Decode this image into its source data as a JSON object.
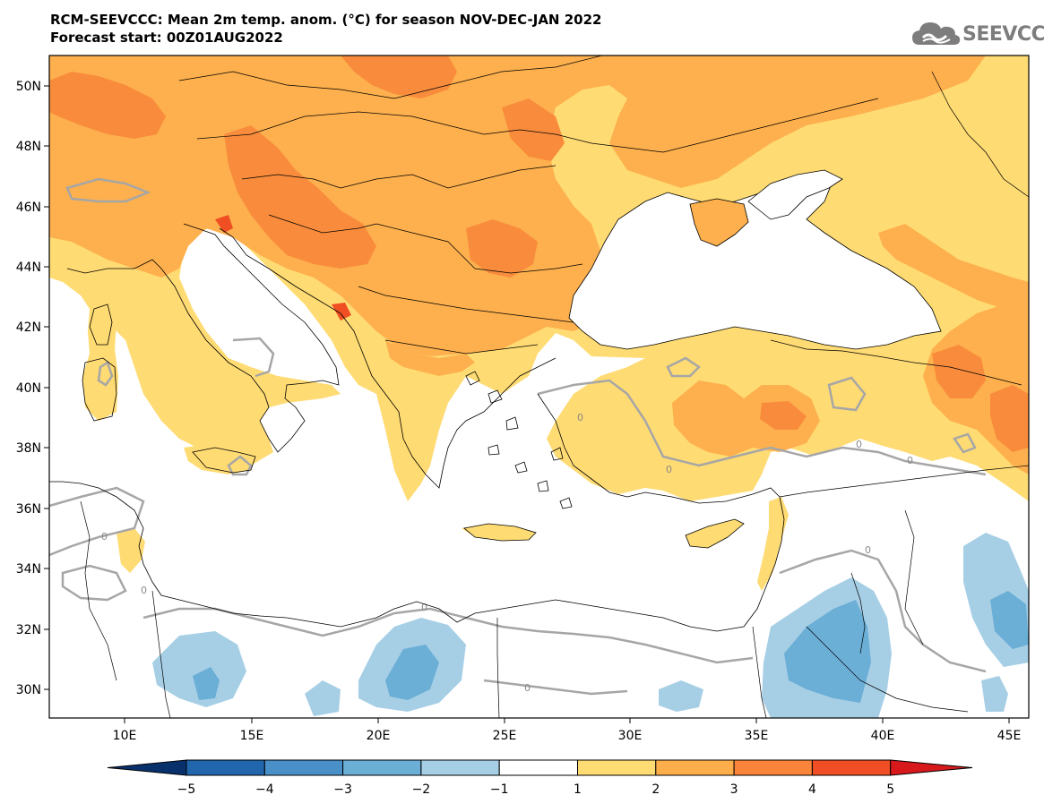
{
  "title": {
    "line1": "RCM-SEEVCCC: Mean 2m temp. anom. (°C) for season NOV-DEC-JAN 2022",
    "line2": "Forecast start: 00Z01AUG2022"
  },
  "logo": {
    "text": "SEEVCCC",
    "icon": "cloud-icon"
  },
  "map": {
    "lat_labels": [
      "50N",
      "48N",
      "46N",
      "44N",
      "42N",
      "40N",
      "38N",
      "36N",
      "34N",
      "32N",
      "30N"
    ],
    "lon_labels": [
      "10E",
      "15E",
      "20E",
      "25E",
      "30E",
      "35E",
      "40E",
      "45E"
    ],
    "contour_label": "0"
  },
  "colorbar": {
    "labels": [
      "−5",
      "−4",
      "−3",
      "−2",
      "−1",
      "1",
      "2",
      "3",
      "4",
      "5"
    ],
    "colors": [
      "#08306b",
      "#2166ac",
      "#4a90c8",
      "#6baed6",
      "#a6cfe6",
      "#ffffff",
      "#ffdb73",
      "#fdae4b",
      "#f9843a",
      "#f04e24",
      "#d7191c"
    ]
  },
  "palette": {
    "warm1": "#ffdb73",
    "warm2": "#fdb04d",
    "warm3": "#f98c3c",
    "warm4": "#ef4f23",
    "cool1": "#a6cfe6",
    "cool2": "#6baed6",
    "contour": "#a6a6a6"
  }
}
